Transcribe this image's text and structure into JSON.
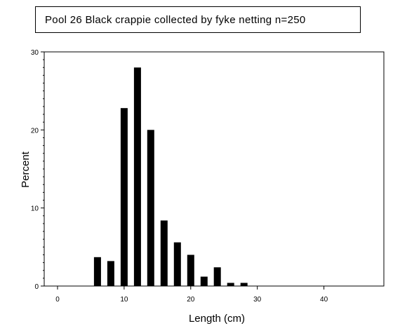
{
  "chart_data": {
    "type": "bar",
    "title": "Pool 26 Black crappie collected by fyke netting   n=250",
    "xlabel": "Length (cm)",
    "ylabel": "Percent",
    "xlim": [
      -2,
      49
    ],
    "ylim": [
      0,
      30
    ],
    "xticks": [
      0,
      10,
      20,
      30,
      40
    ],
    "yticks": [
      0,
      10,
      20,
      30
    ],
    "grid": false,
    "x": [
      6,
      8,
      10,
      12,
      14,
      16,
      18,
      20,
      22,
      24,
      26,
      28
    ],
    "values": [
      3.7,
      3.2,
      22.8,
      28.0,
      20.0,
      8.4,
      5.6,
      4.0,
      1.2,
      2.4,
      0.4,
      0.4
    ]
  }
}
